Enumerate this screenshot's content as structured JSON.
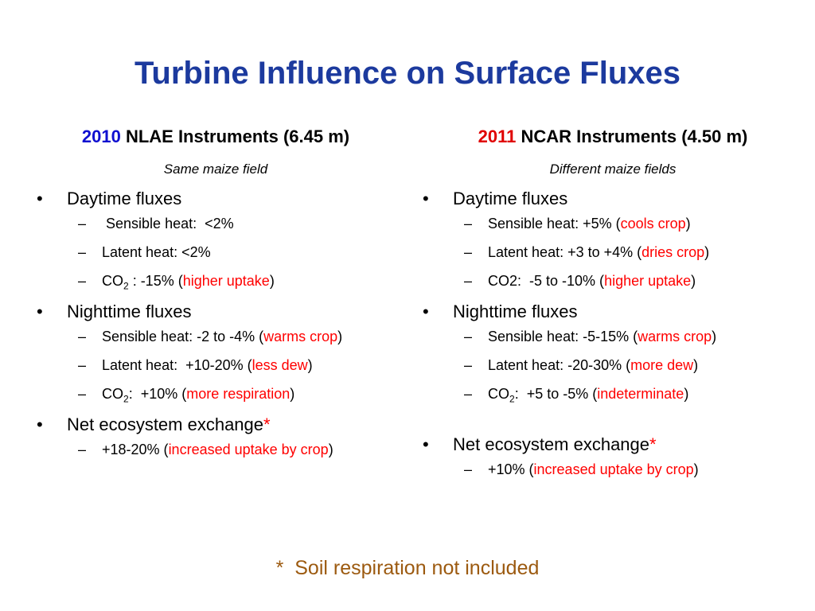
{
  "title": "Turbine Influence on Surface Fluxes",
  "columns": [
    {
      "heading": [
        {
          "t": "2010",
          "color": "#1010d0"
        },
        {
          "t": " NLAE Instruments (6.45 m)"
        }
      ],
      "subtitle": "Same maize field",
      "bullets": [
        {
          "parts": [
            {
              "t": "Daytime fluxes"
            }
          ],
          "subs": [
            [
              {
                "t": " Sensible heat:  <2%"
              }
            ],
            [
              {
                "t": "Latent heat: <2%"
              }
            ],
            [
              {
                "t": "CO"
              },
              {
                "t": "2",
                "sub": true
              },
              {
                "t": " : -15% ("
              },
              {
                "t": "higher uptake",
                "color": "#ff0000"
              },
              {
                "t": ")"
              }
            ]
          ]
        },
        {
          "parts": [
            {
              "t": "Nighttime fluxes"
            }
          ],
          "subs": [
            [
              {
                "t": "Sensible heat: -2 to -4% ("
              },
              {
                "t": "warms crop",
                "color": "#ff0000"
              },
              {
                "t": ")"
              }
            ],
            [
              {
                "t": "Latent heat:  +10-20% ("
              },
              {
                "t": "less dew",
                "color": "#ff0000"
              },
              {
                "t": ")"
              }
            ],
            [
              {
                "t": "CO"
              },
              {
                "t": "2",
                "sub": true
              },
              {
                "t": ":  +10% ("
              },
              {
                "t": "more respiration",
                "color": "#ff0000"
              },
              {
                "t": ")"
              }
            ]
          ]
        },
        {
          "parts": [
            {
              "t": "Net ecosystem exchange"
            },
            {
              "t": "*",
              "color": "#ff0000"
            }
          ],
          "subs": [
            [
              {
                "t": "+18-20% ("
              },
              {
                "t": "increased uptake by crop",
                "color": "#ff0000"
              },
              {
                "t": ")"
              }
            ]
          ]
        }
      ]
    },
    {
      "heading": [
        {
          "t": "2011",
          "color": "#e00000"
        },
        {
          "t": " NCAR Instruments (4.50 m)"
        }
      ],
      "subtitle": "Different maize fields",
      "bullets": [
        {
          "parts": [
            {
              "t": "Daytime fluxes"
            }
          ],
          "subs": [
            [
              {
                "t": "Sensible heat: +5% ("
              },
              {
                "t": "cools crop",
                "color": "#ff0000"
              },
              {
                "t": ")"
              }
            ],
            [
              {
                "t": "Latent heat: +3 to +4% ("
              },
              {
                "t": "dries crop",
                "color": "#ff0000"
              },
              {
                "t": ")"
              }
            ],
            [
              {
                "t": "CO2:  -5 to -10% ("
              },
              {
                "t": "higher uptake",
                "color": "#ff0000"
              },
              {
                "t": ")"
              }
            ]
          ]
        },
        {
          "parts": [
            {
              "t": "Nighttime fluxes"
            }
          ],
          "subs": [
            [
              {
                "t": "Sensible heat: -5-15% ("
              },
              {
                "t": "warms crop",
                "color": "#ff0000"
              },
              {
                "t": ")"
              }
            ],
            [
              {
                "t": "Latent heat: -20-30% ("
              },
              {
                "t": "more dew",
                "color": "#ff0000"
              },
              {
                "t": ")"
              }
            ],
            [
              {
                "t": "CO"
              },
              {
                "t": "2",
                "sub": true
              },
              {
                "t": ":  +5 to -5% ("
              },
              {
                "t": "indeterminate",
                "color": "#ff0000"
              },
              {
                "t": ")"
              }
            ]
          ]
        },
        {
          "parts": [
            {
              "t": "Net ecosystem exchange"
            },
            {
              "t": "*",
              "color": "#ff0000"
            }
          ],
          "subs": [
            [
              {
                "t": "+10% ("
              },
              {
                "t": "increased uptake by crop",
                "color": "#ff0000"
              },
              {
                "t": ")"
              }
            ]
          ]
        }
      ]
    }
  ],
  "footnote": "*  Soil respiration not included"
}
